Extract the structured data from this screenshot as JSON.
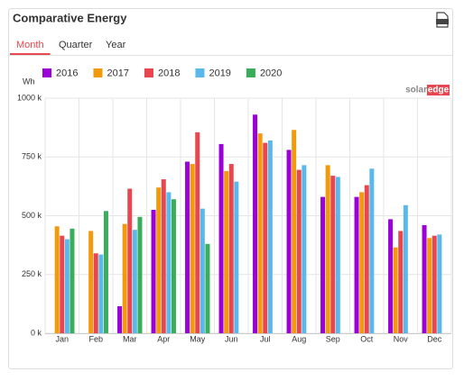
{
  "widget": {
    "title": "Comparative Energy",
    "tabs": [
      "Month",
      "Quarter",
      "Year"
    ],
    "active_tab": 0,
    "logo": {
      "left": "solar",
      "right": "edge"
    }
  },
  "chart_data": {
    "type": "bar",
    "ylabel": "Wh",
    "categories": [
      "Jan",
      "Feb",
      "Mar",
      "Apr",
      "May",
      "Jun",
      "Jul",
      "Aug",
      "Sep",
      "Oct",
      "Nov",
      "Dec"
    ],
    "series": [
      {
        "name": "2016",
        "color": "#9b00d9",
        "values": [
          null,
          null,
          115000,
          525000,
          730000,
          805000,
          930000,
          780000,
          580000,
          580000,
          485000,
          460000
        ]
      },
      {
        "name": "2017",
        "color": "#f29a0b",
        "values": [
          455000,
          435000,
          465000,
          620000,
          720000,
          690000,
          850000,
          865000,
          715000,
          600000,
          365000,
          405000
        ]
      },
      {
        "name": "2018",
        "color": "#e9474f",
        "values": [
          415000,
          340000,
          615000,
          655000,
          855000,
          720000,
          810000,
          695000,
          670000,
          630000,
          435000,
          415000
        ]
      },
      {
        "name": "2019",
        "color": "#5ab9ea",
        "values": [
          400000,
          335000,
          440000,
          600000,
          530000,
          645000,
          820000,
          715000,
          665000,
          700000,
          545000,
          420000
        ]
      },
      {
        "name": "2020",
        "color": "#3aad5a",
        "values": [
          445000,
          520000,
          495000,
          570000,
          380000,
          null,
          null,
          null,
          null,
          null,
          null,
          null
        ]
      }
    ],
    "ylim": [
      0,
      1000000
    ],
    "yticks": [
      {
        "value": 0,
        "label": "0 k"
      },
      {
        "value": 250000,
        "label": "250 k"
      },
      {
        "value": 500000,
        "label": "500 k"
      },
      {
        "value": 750000,
        "label": "750 k"
      },
      {
        "value": 1000000,
        "label": "1000 k"
      }
    ],
    "grid": true
  }
}
